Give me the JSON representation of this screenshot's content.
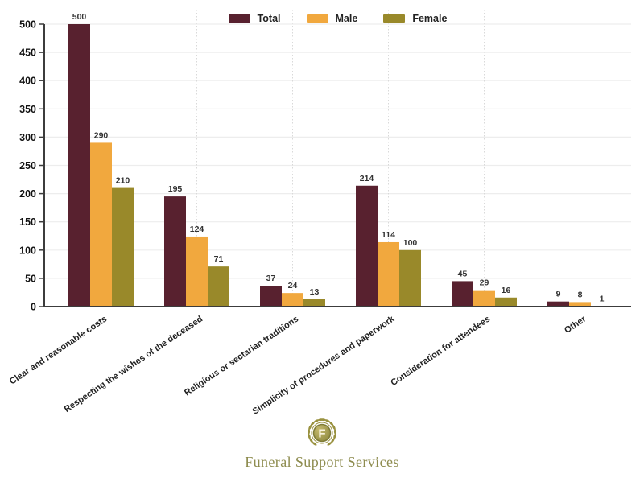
{
  "chart_data": {
    "type": "bar",
    "title": "",
    "xlabel": "",
    "ylabel": "",
    "categories": [
      "Clear and reasonable costs",
      "Respecting the wishes of the deceased",
      "Religious or sectarian traditions",
      "Simplicity of procedures and paperwork",
      "Consideration for attendees",
      "Other"
    ],
    "series": [
      {
        "name": "Total",
        "color": "#58212f",
        "values": [
          500,
          195,
          37,
          214,
          45,
          9
        ]
      },
      {
        "name": "Male",
        "color": "#f1a83e",
        "values": [
          290,
          124,
          24,
          114,
          29,
          8
        ]
      },
      {
        "name": "Female",
        "color": "#99892a",
        "values": [
          210,
          71,
          13,
          100,
          16,
          1
        ]
      }
    ],
    "ylim": [
      0,
      500
    ],
    "yticks": [
      0,
      50,
      100,
      150,
      200,
      250,
      300,
      350,
      400,
      450,
      500
    ],
    "grid": {
      "horizontal": "solid",
      "vertical": "dotted"
    },
    "legend_position": "top-center",
    "bar_value_labels_shown": true
  },
  "colors": {
    "grid_solid": "#ededed",
    "grid_dotted": "#d9d9d9",
    "axis_spine": "#3c3c3c",
    "tick_text": "#111111",
    "value_text": "#333333",
    "brand_olive": "#8e8c4f",
    "emblem_gold": "#99913f"
  },
  "branding": {
    "logo_text": "Funeral Support Services",
    "logo_monogram": "F"
  }
}
